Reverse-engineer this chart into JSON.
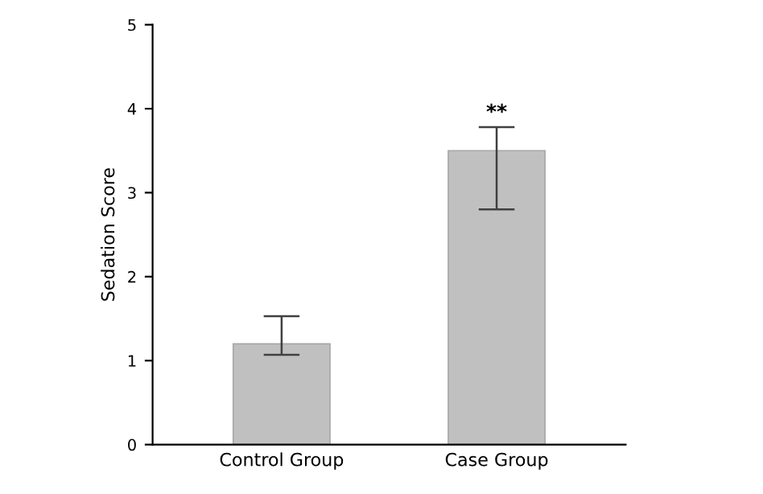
{
  "chart_data": {
    "type": "bar",
    "ylabel": "Sedation Score",
    "categories": [
      "Control Group",
      "Case Group"
    ],
    "values": [
      1.2,
      3.5
    ],
    "errors": [
      [
        1.07,
        1.53
      ],
      [
        2.8,
        3.78
      ]
    ],
    "color": "#c0c0c0",
    "ylim": [
      0,
      5
    ],
    "yticks": [
      0,
      1,
      2,
      3,
      4,
      5
    ],
    "grid": false,
    "annotations": [
      {
        "text": "**",
        "x": "Case Group",
        "y": 3.78
      }
    ]
  }
}
